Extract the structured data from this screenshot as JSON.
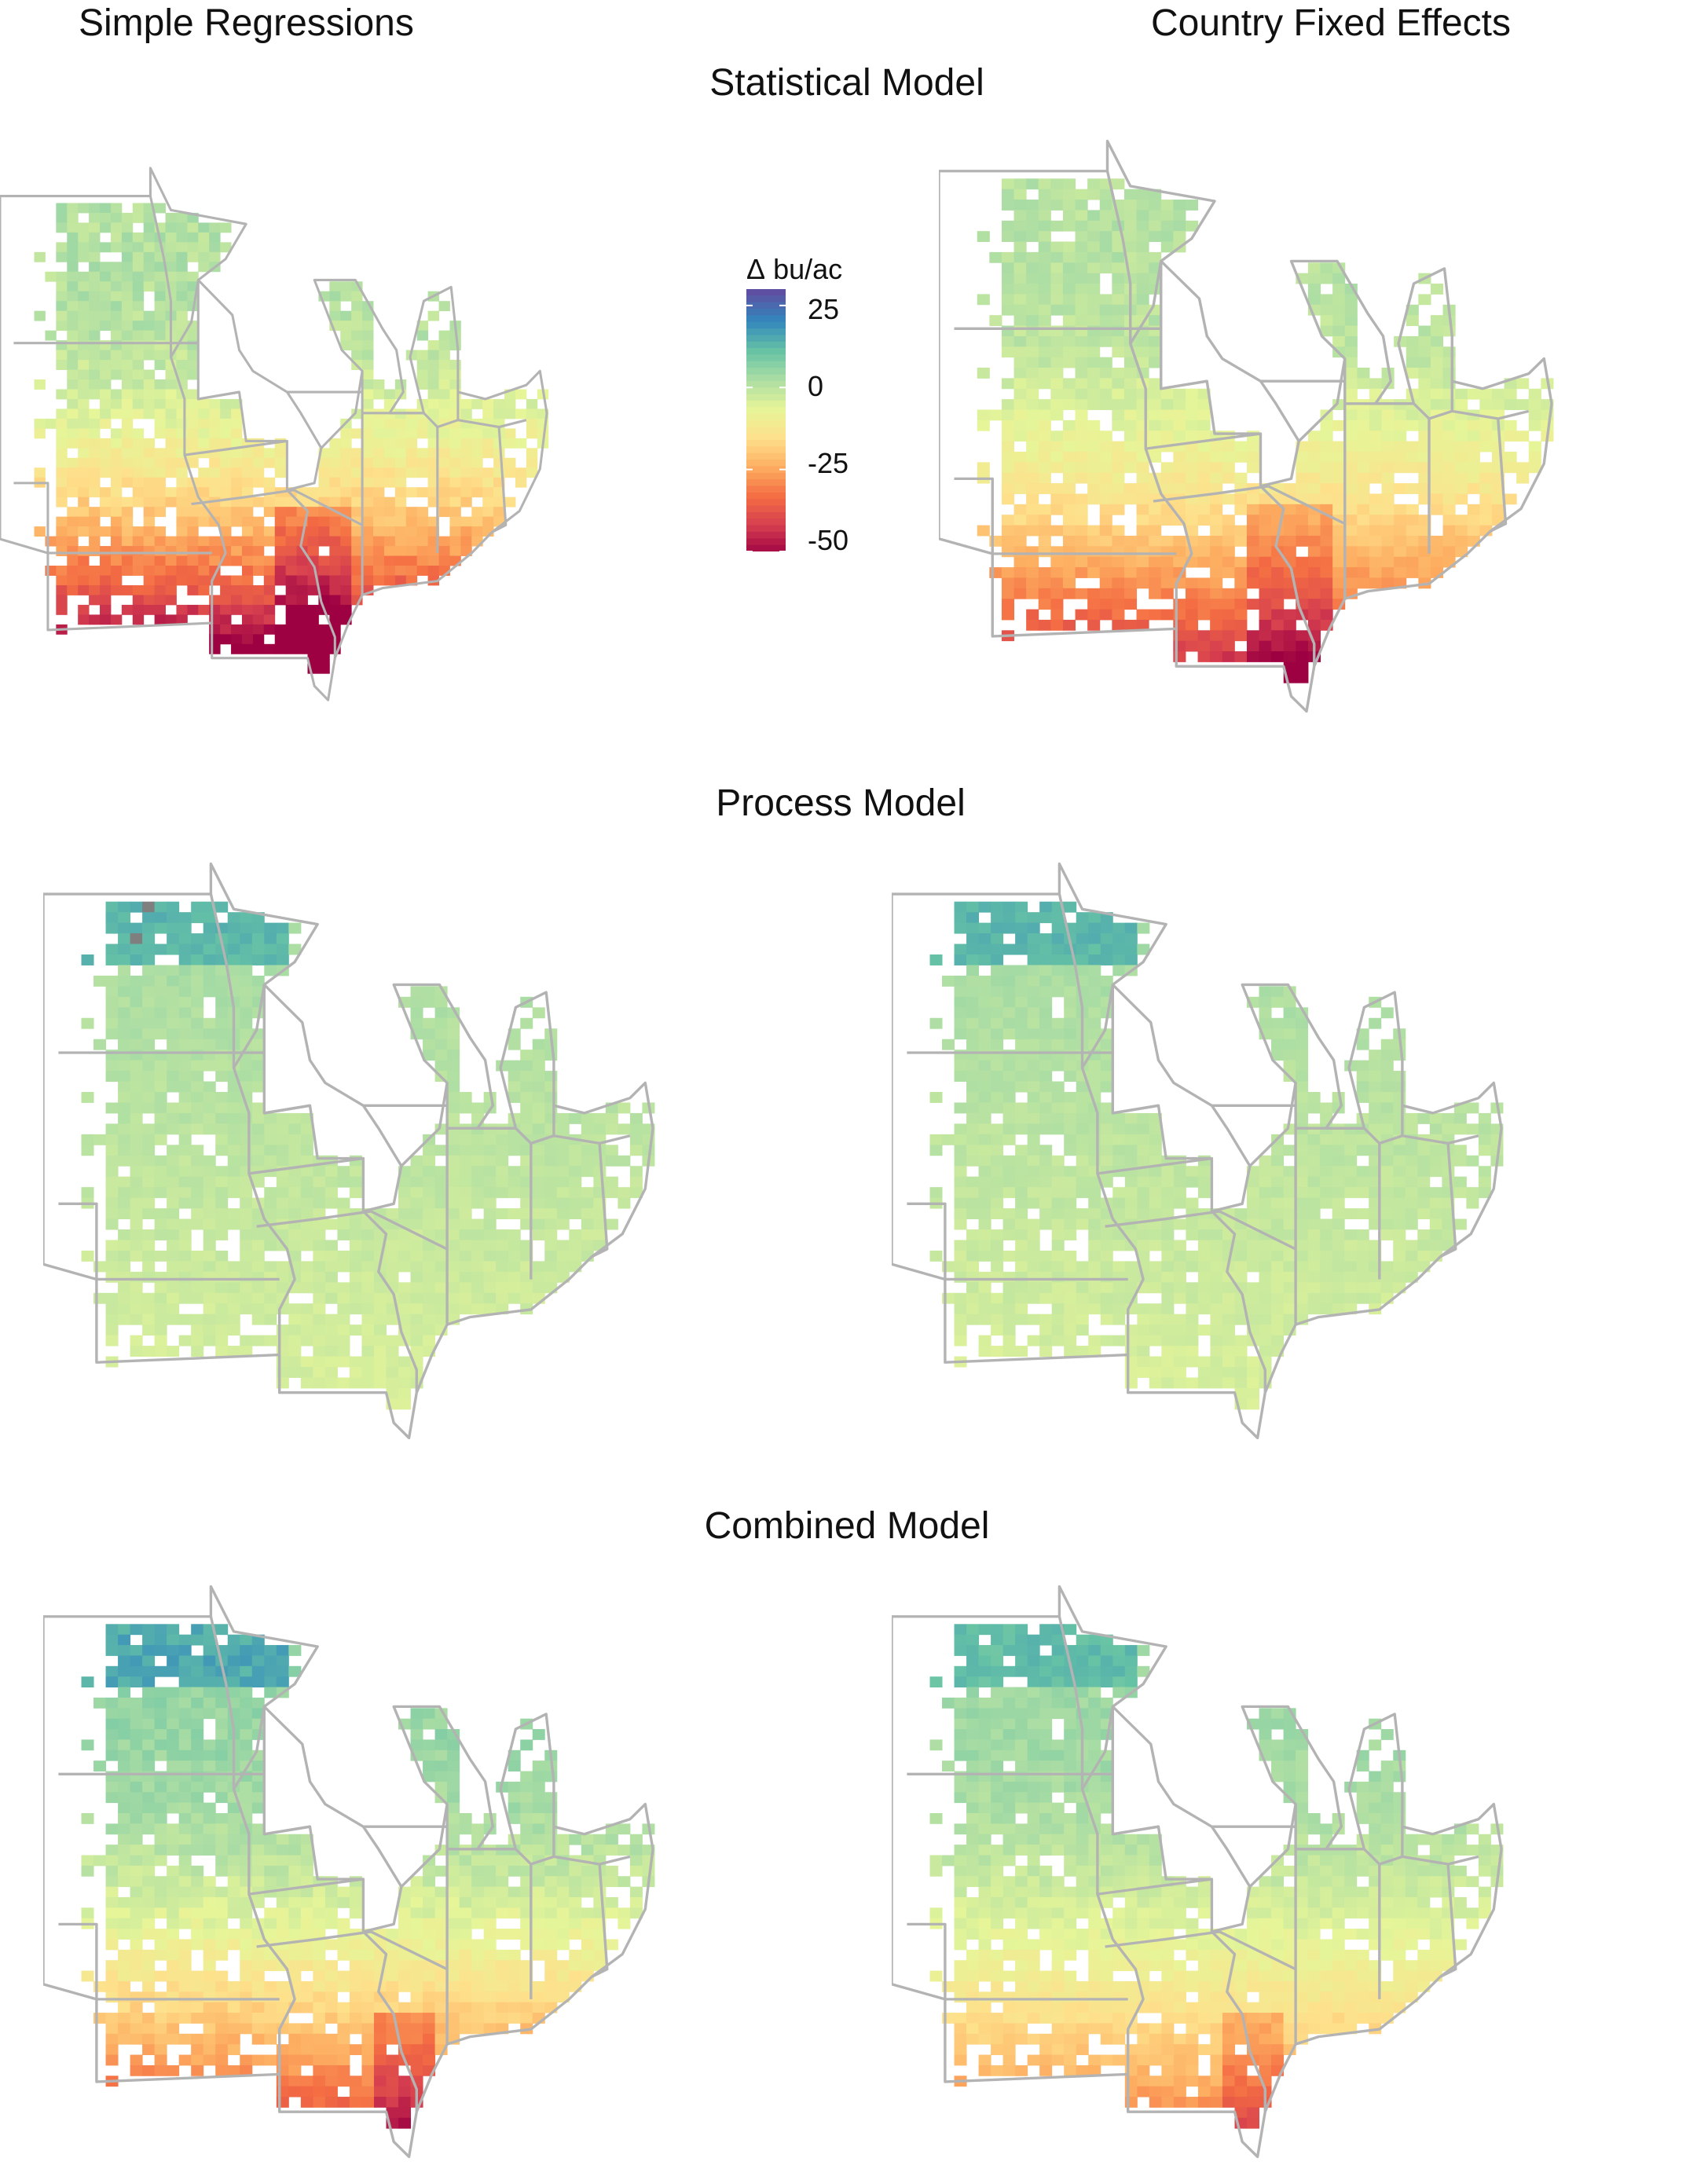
{
  "column_titles": {
    "left": "Simple Regressions",
    "right": "Country Fixed Effects"
  },
  "row_titles": {
    "statistical": "Statistical Model",
    "process": "Process Model",
    "combined": "Combined Model"
  },
  "legend": {
    "symbol": "Δ",
    "unit": "bu/ac",
    "ticks": [
      "25",
      "0",
      "-25",
      "-50"
    ],
    "range": [
      -50,
      30
    ]
  },
  "colors": {
    "border": "#b3b3b3",
    "missing": "#7f7f7f",
    "scale_stops": [
      "#5e4fa2",
      "#3288bd",
      "#66c2a5",
      "#abdda4",
      "#e6f598",
      "#fee08b",
      "#fdae61",
      "#f46d43",
      "#d53e4f",
      "#9e0142"
    ]
  },
  "panels": [
    {
      "id": "statistical-simple",
      "row": "statistical",
      "column": "left"
    },
    {
      "id": "statistical-fixed",
      "row": "statistical",
      "column": "right"
    },
    {
      "id": "process-simple",
      "row": "process",
      "column": "left"
    },
    {
      "id": "process-fixed",
      "row": "process",
      "column": "right"
    },
    {
      "id": "combined-simple",
      "row": "combined",
      "column": "left"
    },
    {
      "id": "combined-fixed",
      "row": "combined",
      "column": "right"
    }
  ]
}
